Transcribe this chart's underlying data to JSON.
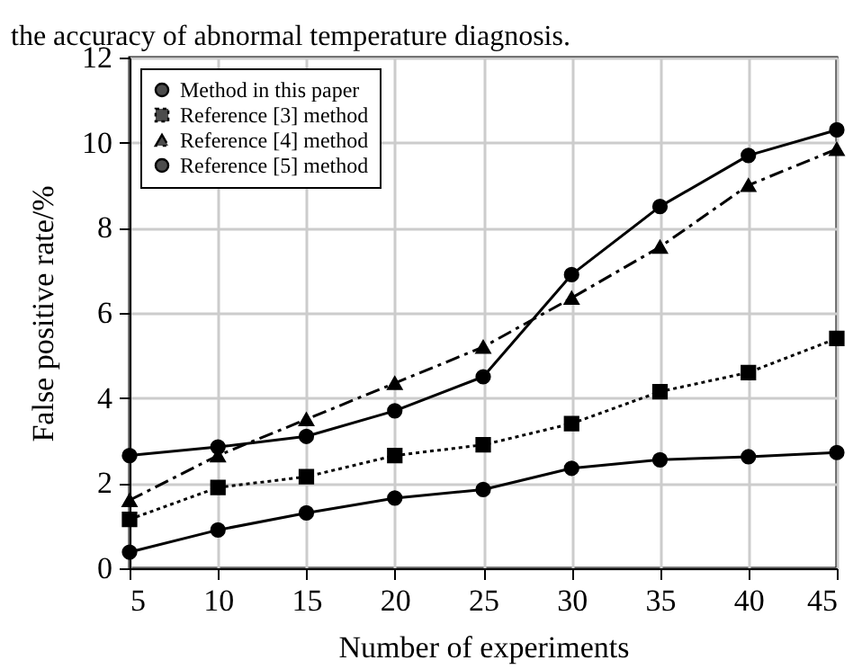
{
  "chart_data": {
    "type": "line",
    "xlabel": "Number of experiments",
    "ylabel": "False positive rate/%",
    "annotations": [
      "the accuracy of abnormal temperature diagnosis."
    ],
    "x": [
      5,
      10,
      15,
      20,
      25,
      30,
      35,
      40,
      45
    ],
    "series": [
      {
        "name": "Method in this paper",
        "color": "#000000",
        "marker": "circle",
        "line_style": "solid",
        "values": [
          0.38,
          0.9,
          1.3,
          1.65,
          1.85,
          2.35,
          2.55,
          2.62,
          2.72
        ]
      },
      {
        "name": "Reference [3] method",
        "color": "#000000",
        "marker": "square",
        "line_style": "dotted",
        "values": [
          1.15,
          1.9,
          2.15,
          2.65,
          2.9,
          3.4,
          4.15,
          4.6,
          5.4
        ]
      },
      {
        "name": "Reference [4] method",
        "color": "#000000",
        "marker": "triangle",
        "line_style": "dashdot",
        "values": [
          1.6,
          2.65,
          3.5,
          4.35,
          5.2,
          6.35,
          7.55,
          9.0,
          9.85
        ]
      },
      {
        "name": "Reference [5] method",
        "color": "#000000",
        "marker": "circle",
        "line_style": "solid",
        "values": [
          2.65,
          2.85,
          3.1,
          3.7,
          4.5,
          6.9,
          8.5,
          9.7,
          10.3
        ]
      }
    ],
    "xlim": [
      5,
      45
    ],
    "xticks": [
      5,
      10,
      15,
      20,
      25,
      30,
      35,
      40,
      45
    ],
    "ylim": [
      0,
      12
    ],
    "yticks": [
      0,
      2,
      4,
      6,
      8,
      10,
      12
    ],
    "grid": true,
    "legend": "top left"
  }
}
